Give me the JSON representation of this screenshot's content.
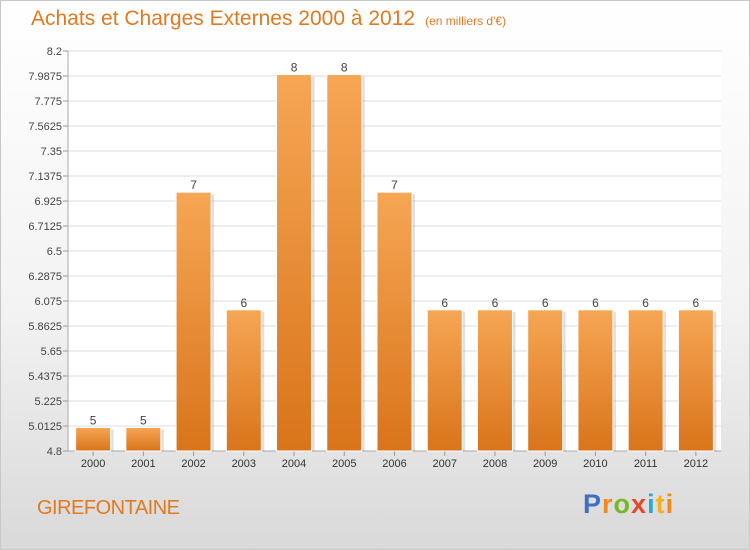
{
  "header": {
    "title": "Achats et Charges Externes 2000 à 2012",
    "unit": "(en milliers d'€)"
  },
  "footer": {
    "commune": "GIREFONTAINE"
  },
  "logo": {
    "letters": [
      "P",
      "r",
      "o",
      "x",
      "i",
      "t",
      "i"
    ]
  },
  "colors": {
    "accent": "#e07a20",
    "bar_top": "#f6a654",
    "bar_bottom": "#d9741a"
  },
  "chart_data": {
    "type": "bar",
    "title": "Achats et Charges Externes 2000 à 2012",
    "subtitle": "(en milliers d'€)",
    "categories": [
      "2000",
      "2001",
      "2002",
      "2003",
      "2004",
      "2005",
      "2006",
      "2007",
      "2008",
      "2009",
      "2010",
      "2011",
      "2012"
    ],
    "values": [
      5,
      5,
      7,
      6,
      8,
      8,
      7,
      6,
      6,
      6,
      6,
      6,
      6
    ],
    "data_labels": [
      "5",
      "5",
      "7",
      "6",
      "8",
      "8",
      "7",
      "6",
      "6",
      "6",
      "6",
      "6",
      "6"
    ],
    "ylim": [
      4.8,
      8.2
    ],
    "yticks": [
      "4.8",
      "5.0125",
      "5.225",
      "5.4375",
      "5.65",
      "5.8625",
      "6.075",
      "6.2875",
      "6.5",
      "6.7125",
      "6.925",
      "7.1375",
      "7.35",
      "7.5625",
      "7.775",
      "7.9875",
      "8.2"
    ],
    "grid": true,
    "legend": "none"
  }
}
